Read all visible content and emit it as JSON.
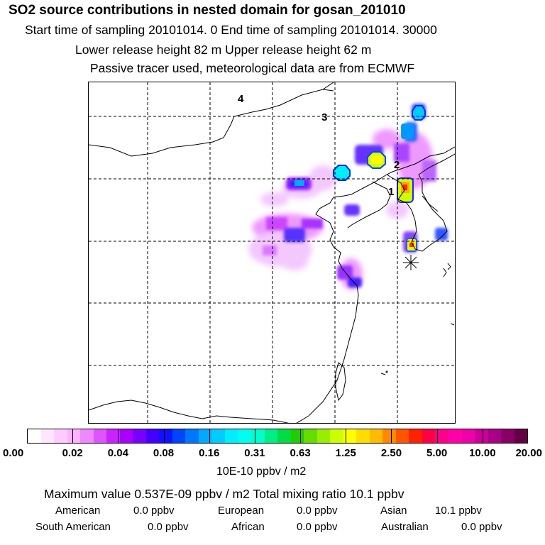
{
  "header": {
    "title": "SO2 source contributions in nested domain for gosan_201010",
    "sampling_line": "Start time of sampling 20101014.     0     End time of sampling 20101014. 30000",
    "release_line": "Lower release height   82 m           Upper release height   62 m",
    "tracer_line": "Passive tracer used, meteorological data are from ECMWF"
  },
  "map": {
    "region_labels": [
      "1",
      "2",
      "3",
      "4"
    ],
    "receptor_marker": "asterisk-marker"
  },
  "colorbar": {
    "colors": [
      "#ffffff",
      "#ffe6ff",
      "#ffccff",
      "#ffb3ff",
      "#ee88ff",
      "#dd55ff",
      "#cc22ff",
      "#aa00ff",
      "#7700ff",
      "#4400ff",
      "#1111ff",
      "#0044ff",
      "#0077ff",
      "#00aaff",
      "#00ccff",
      "#00eeff",
      "#00ffee",
      "#00ffcc",
      "#00ee88",
      "#00dd44",
      "#22cc00",
      "#66dd00",
      "#99ee00",
      "#ccff00",
      "#ffff00",
      "#ffdd00",
      "#ffbb00",
      "#ff8800",
      "#ff5500",
      "#ff2200",
      "#ff0044",
      "#ff0088",
      "#ff00aa",
      "#ee00aa",
      "#cc0099",
      "#aa0088",
      "#880066",
      "#660044"
    ],
    "tick_labels": [
      "0.00",
      "0.02",
      "0.04",
      "0.08",
      "0.16",
      "0.31",
      "0.63",
      "1.25",
      "2.50",
      "5.00",
      "10.00",
      "20.00"
    ],
    "unit_label": "10E-10 ppbv / m2"
  },
  "footer": {
    "max_line": "Maximum value  0.537E-09 ppbv / m2      Total mixing ratio       10.1 ppbv",
    "row1": [
      "American",
      "0.0 ppbv",
      "European",
      "0.0 ppbv",
      "Asian",
      "10.1 ppbv"
    ],
    "row2": [
      "South American",
      "0.0 ppbv",
      "African",
      "0.0 ppbv",
      "Australian",
      "0.0 ppbv"
    ]
  }
}
